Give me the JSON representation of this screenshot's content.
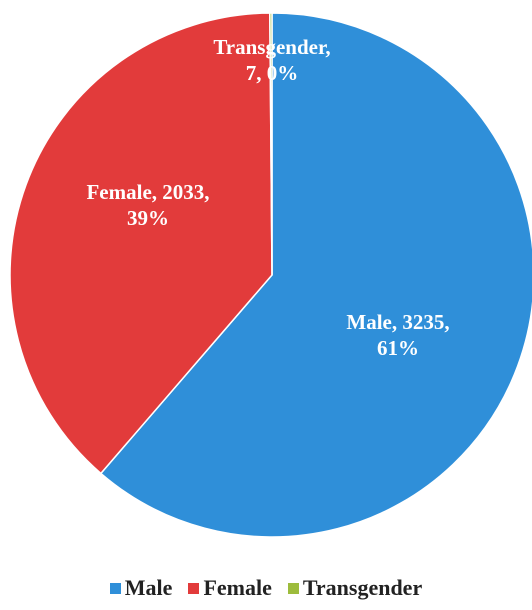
{
  "chart_data": {
    "type": "pie",
    "categories": [
      "Male",
      "Female",
      "Transgender"
    ],
    "values": [
      3235,
      2033,
      7
    ],
    "value_labels": [
      "Male, 3235, 61%",
      "Female, 2033, 39%",
      "Transgender, 7, 0%"
    ],
    "colors": [
      "#2f8fd9",
      "#e23b3b",
      "#9dbc3c"
    ],
    "legend": "bottom"
  }
}
